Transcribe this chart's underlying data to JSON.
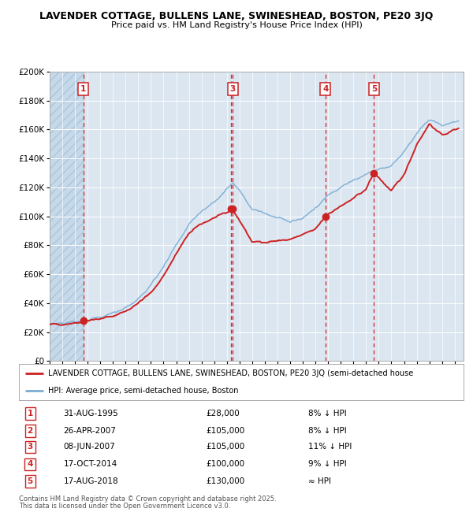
{
  "title_line1": "LAVENDER COTTAGE, BULLENS LANE, SWINESHEAD, BOSTON, PE20 3JQ",
  "title_line2": "Price paid vs. HM Land Registry's House Price Index (HPI)",
  "background_color": "#ffffff",
  "plot_bg_color": "#dce6f1",
  "grid_color": "#ffffff",
  "hpi_color": "#7aadd4",
  "price_color": "#cc2222",
  "transactions": [
    {
      "num": 1,
      "date": "1995-08-31",
      "price": 28000,
      "x_year": 1995.67
    },
    {
      "num": 2,
      "date": "2007-04-26",
      "price": 105000,
      "x_year": 2007.32
    },
    {
      "num": 3,
      "date": "2007-06-08",
      "price": 105000,
      "x_year": 2007.46
    },
    {
      "num": 4,
      "date": "2014-10-17",
      "price": 100000,
      "x_year": 2014.79
    },
    {
      "num": 5,
      "date": "2018-08-17",
      "price": 130000,
      "x_year": 2018.63
    }
  ],
  "shown_labels": [
    1,
    3,
    4,
    5
  ],
  "legend_line1": "LAVENDER COTTAGE, BULLENS LANE, SWINESHEAD, BOSTON, PE20 3JQ (semi-detached house",
  "legend_line2": "HPI: Average price, semi-detached house, Boston",
  "table": [
    {
      "num": 1,
      "date": "31-AUG-1995",
      "price": "£28,000",
      "hpi": "8% ↓ HPI"
    },
    {
      "num": 2,
      "date": "26-APR-2007",
      "price": "£105,000",
      "hpi": "8% ↓ HPI"
    },
    {
      "num": 3,
      "date": "08-JUN-2007",
      "price": "£105,000",
      "hpi": "11% ↓ HPI"
    },
    {
      "num": 4,
      "date": "17-OCT-2014",
      "price": "£100,000",
      "hpi": "9% ↓ HPI"
    },
    {
      "num": 5,
      "date": "17-AUG-2018",
      "price": "£130,000",
      "hpi": "≈ HPI"
    }
  ],
  "footnote1": "Contains HM Land Registry data © Crown copyright and database right 2025.",
  "footnote2": "This data is licensed under the Open Government Licence v3.0.",
  "ylim": [
    0,
    200000
  ],
  "yticks": [
    0,
    20000,
    40000,
    60000,
    80000,
    100000,
    120000,
    140000,
    160000,
    180000,
    200000
  ],
  "xlim_start": 1993.0,
  "xlim_end": 2025.7,
  "hatch_end": 1995.67
}
